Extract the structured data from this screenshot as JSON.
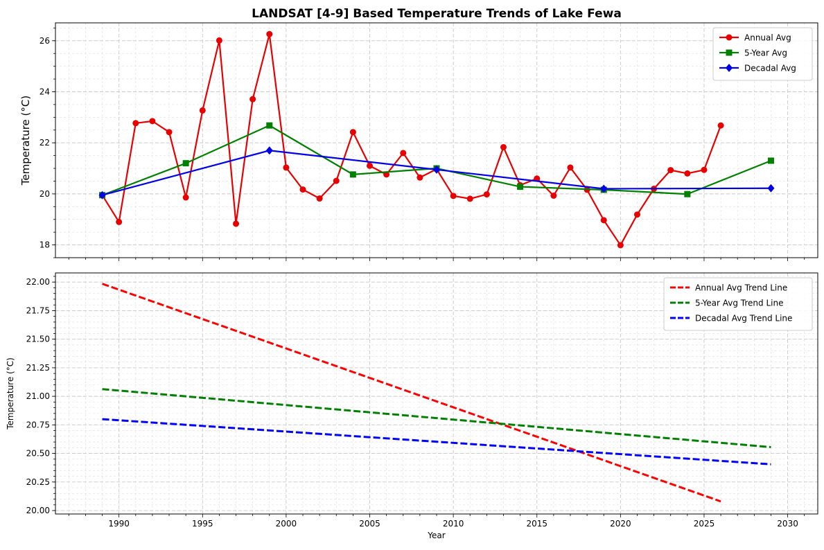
{
  "chart_data": [
    {
      "type": "line",
      "title": "LANDSAT [4-9] Based Temperature Trends of Lake Fewa",
      "xlabel": "",
      "ylabel": "Temperature (°C)",
      "xlim": [
        1986.2,
        2031.8
      ],
      "ylim": [
        17.5,
        26.7
      ],
      "xticks": [
        1990,
        1995,
        2000,
        2005,
        2010,
        2015,
        2020,
        2025,
        2030
      ],
      "yticks": [
        18,
        20,
        22,
        24,
        26
      ],
      "grid": true,
      "legend_position": "upper right",
      "series": [
        {
          "name": "Annual Avg",
          "color": "#e80000",
          "marker": "circle",
          "x": [
            1989,
            1990,
            1991,
            1992,
            1993,
            1994,
            1995,
            1996,
            1997,
            1998,
            1999,
            2000,
            2001,
            2002,
            2003,
            2004,
            2005,
            2006,
            2007,
            2008,
            2009,
            2010,
            2011,
            2012,
            2013,
            2014,
            2015,
            2016,
            2017,
            2018,
            2019,
            2020,
            2021,
            2022,
            2023,
            2024,
            2025,
            2026
          ],
          "values": [
            19.95,
            18.9,
            22.77,
            22.85,
            22.42,
            19.86,
            23.27,
            26.01,
            18.83,
            23.71,
            26.26,
            21.03,
            20.17,
            19.82,
            20.51,
            22.42,
            21.1,
            20.76,
            21.6,
            20.64,
            20.97,
            19.92,
            19.81,
            19.98,
            21.83,
            20.34,
            20.6,
            19.93,
            21.03,
            20.16,
            18.97,
            17.99,
            19.19,
            20.2,
            20.93,
            20.8,
            20.94,
            22.68
          ]
        },
        {
          "name": "5-Year Avg",
          "color": "#008000",
          "marker": "square",
          "x": [
            1989,
            1994,
            1999,
            2004,
            2009,
            2014,
            2019,
            2024,
            2029
          ],
          "values": [
            19.95,
            21.2,
            22.68,
            20.76,
            21.0,
            20.28,
            20.16,
            19.99,
            21.3
          ]
        },
        {
          "name": "Decadal Avg",
          "color": "#0000e8",
          "marker": "diamond",
          "x": [
            1989,
            1999,
            2009,
            2019,
            2029
          ],
          "values": [
            19.95,
            21.7,
            20.95,
            20.2,
            20.22
          ]
        }
      ]
    },
    {
      "type": "line",
      "title": "",
      "xlabel": "Year",
      "ylabel": "Temperature (°C)",
      "xlim": [
        1986.2,
        2031.8
      ],
      "ylim": [
        19.97,
        22.08
      ],
      "xticks": [
        1990,
        1995,
        2000,
        2005,
        2010,
        2015,
        2020,
        2025,
        2030
      ],
      "yticks": [
        20.0,
        20.25,
        20.5,
        20.75,
        21.0,
        21.25,
        21.5,
        21.75,
        22.0
      ],
      "ytick_labels": [
        "20.00",
        "20.25",
        "20.50",
        "20.75",
        "21.00",
        "21.25",
        "21.50",
        "21.75",
        "22.00"
      ],
      "grid": true,
      "legend_position": "upper right",
      "series": [
        {
          "name": "Annual Avg Trend Line",
          "color": "#ff0000",
          "style": "dashed",
          "x": [
            1989,
            2026
          ],
          "values": [
            21.985,
            20.08
          ]
        },
        {
          "name": "5-Year Avg Trend Line",
          "color": "#008000",
          "style": "dashed",
          "x": [
            1989,
            2029
          ],
          "values": [
            21.063,
            20.555
          ]
        },
        {
          "name": "Decadal Avg Trend Line",
          "color": "#0000ff",
          "style": "dashed",
          "x": [
            1989,
            2029
          ],
          "values": [
            20.8,
            20.405
          ]
        }
      ]
    }
  ]
}
